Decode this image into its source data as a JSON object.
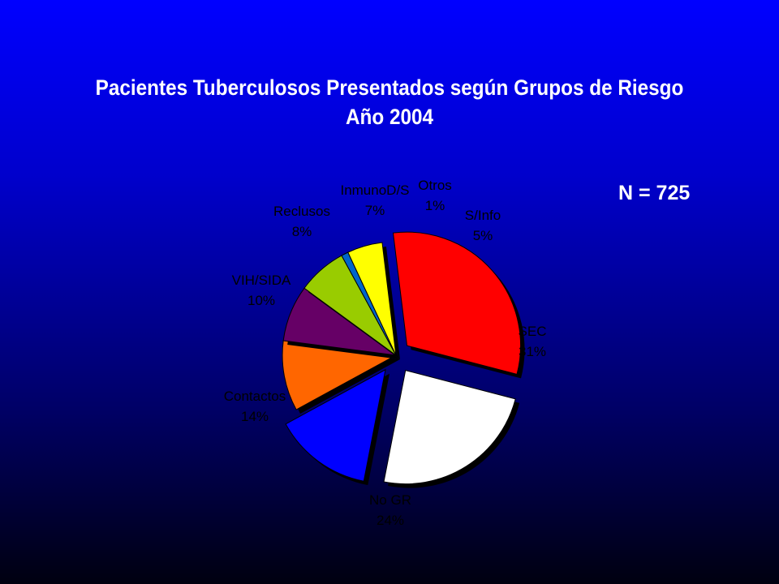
{
  "title_line1": "Pacientes Tuberculosos Presentados según Grupos de Riesgo",
  "title_line2": "Año 2004",
  "n_label": "N = 725",
  "chart_data": {
    "type": "pie",
    "title": "Pacientes Tuberculosos Presentados según Grupos de Riesgo Año 2004",
    "slices": [
      {
        "name": "SEC",
        "value": 31,
        "label": "31%",
        "color": "#ff0000"
      },
      {
        "name": "No GR",
        "value": 24,
        "label": "24%",
        "color": "#ffffff"
      },
      {
        "name": "Contactos",
        "value": 14,
        "label": "14%",
        "color": "#0000ff"
      },
      {
        "name": "VIH/SIDA",
        "value": 10,
        "label": "10%",
        "color": "#ff6600"
      },
      {
        "name": "Reclusos",
        "value": 8,
        "label": "8%",
        "color": "#660066"
      },
      {
        "name": "InmunoD/S",
        "value": 7,
        "label": "7%",
        "color": "#99cc00"
      },
      {
        "name": "Otros",
        "value": 1,
        "label": "1%",
        "color": "#0066cc"
      },
      {
        "name": "S/Info",
        "value": 5,
        "label": "5%",
        "color": "#ffff00"
      }
    ]
  }
}
